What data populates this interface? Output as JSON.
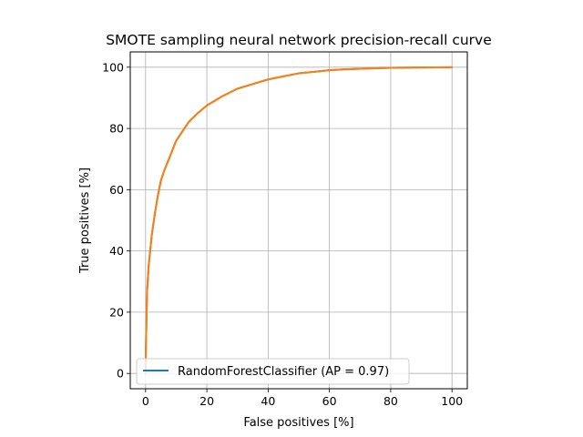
{
  "chart_data": {
    "type": "line",
    "title": "SMOTE sampling neural network precision-recall curve",
    "xlabel": "False positives [%]",
    "ylabel": "True positives [%]",
    "xlim": [
      -5,
      105
    ],
    "ylim": [
      -5,
      105
    ],
    "xticks": [
      0,
      20,
      40,
      60,
      80,
      100
    ],
    "yticks": [
      0,
      20,
      40,
      60,
      80,
      100
    ],
    "xtick_labels": [
      "0",
      "20",
      "40",
      "60",
      "80",
      "100"
    ],
    "ytick_labels": [
      "0",
      "20",
      "40",
      "60",
      "80",
      "100"
    ],
    "grid": true,
    "legend_position": "lower-left",
    "series": [
      {
        "name": "RandomForestClassifier (AP = 0.97)",
        "color": "#1f77b4",
        "in_legend": true,
        "x": [
          0,
          0.1,
          0.3,
          0.5,
          1,
          1.5,
          2,
          3,
          4,
          5,
          6,
          8,
          10,
          12,
          14,
          17,
          20,
          25,
          30,
          35,
          40,
          45,
          50,
          55,
          60,
          65,
          70,
          80,
          90,
          100
        ],
        "y": [
          0,
          8,
          18,
          27,
          35,
          40,
          45,
          52,
          58,
          63,
          66,
          71,
          76,
          79,
          82,
          85,
          87.5,
          90.5,
          93,
          94.5,
          96,
          97,
          98,
          98.5,
          99,
          99.3,
          99.5,
          99.8,
          99.9,
          100
        ]
      },
      {
        "name": "",
        "color": "#ff7f0e",
        "in_legend": false,
        "x": [
          0,
          0.1,
          0.3,
          0.5,
          1,
          1.5,
          2,
          3,
          4,
          5,
          6,
          8,
          10,
          12,
          14,
          17,
          20,
          25,
          30,
          35,
          40,
          45,
          50,
          55,
          60,
          65,
          70,
          80,
          90,
          100
        ],
        "y": [
          0,
          8,
          18,
          27,
          35,
          40,
          45,
          52,
          58,
          63,
          66,
          71,
          76,
          79,
          82,
          85,
          87.5,
          90.5,
          93,
          94.5,
          96,
          97,
          98,
          98.5,
          99,
          99.3,
          99.5,
          99.8,
          99.9,
          100
        ]
      }
    ]
  }
}
